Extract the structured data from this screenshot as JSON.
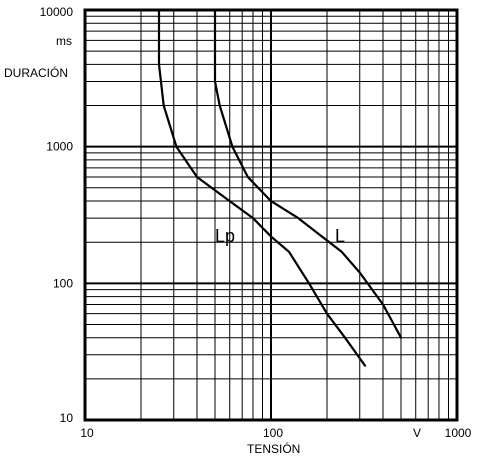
{
  "chart_data": {
    "type": "line",
    "title": "",
    "xlabel": "TENSIÓN",
    "ylabel": "DURACIÓN",
    "x_unit": "V",
    "y_unit": "ms",
    "x_scale": "log",
    "y_scale": "log",
    "xlim": [
      10,
      1000
    ],
    "ylim": [
      10,
      10000
    ],
    "grid": true,
    "x_tick_labels": [
      "10",
      "100",
      "1000"
    ],
    "y_tick_labels": [
      "10",
      "100",
      "1000",
      "10000"
    ],
    "x_ticks": [
      10,
      100,
      1000
    ],
    "y_ticks": [
      10,
      100,
      1000,
      10000
    ],
    "series": [
      {
        "name": "Lp",
        "label": "Lp",
        "label_at": [
          58,
          250
        ],
        "x": [
          25,
          25,
          26.5,
          31,
          40,
          60,
          80,
          100,
          125,
          160,
          200,
          250,
          320
        ],
        "y": [
          10000,
          4000,
          2000,
          1000,
          600,
          400,
          300,
          220,
          170,
          100,
          60,
          40,
          25
        ]
      },
      {
        "name": "L",
        "label": "L",
        "label_at": [
          235,
          250
        ],
        "x": [
          50,
          50,
          53,
          62,
          75,
          100,
          140,
          180,
          240,
          300,
          400,
          500
        ],
        "y": [
          10000,
          3000,
          2000,
          1000,
          600,
          400,
          300,
          230,
          170,
          120,
          70,
          40
        ]
      }
    ],
    "colors": {
      "line": "#000000",
      "grid": "#000000",
      "background": "#ffffff"
    }
  }
}
